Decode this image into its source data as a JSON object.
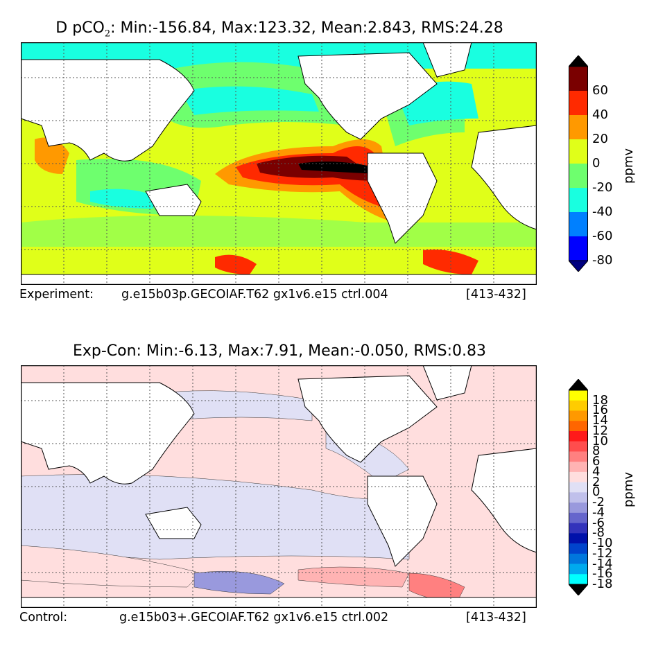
{
  "panel_top": {
    "title_prefix": "D pCO",
    "title_sub": "2",
    "title_rest": ": Min:-156.84, Max:123.32, Mean:2.843, RMS:24.28",
    "caption_label": "Experiment:",
    "caption_case": "g.e15b03p.GECOIAF.T62 gx1v6.e15 ctrl.004",
    "caption_years": "[413-432]",
    "colorbar": {
      "unit": "ppmv",
      "tick_labels": [
        "60",
        "40",
        "20",
        "0",
        "-20",
        "-40",
        "-60",
        "-80"
      ],
      "colors": [
        "#000000",
        "#7a0000",
        "#ff2a00",
        "#ff9900",
        "#e0ff19",
        "#6eff6e",
        "#19ffe0",
        "#0080ff",
        "#0000ff",
        "#000080"
      ]
    }
  },
  "panel_bottom": {
    "title": "Exp-Con: Min:-6.13, Max:7.91, Mean:-0.050, RMS:0.83",
    "caption_label": "Control:",
    "caption_case": "g.e15b03+.GECOIAF.T62 gx1v6.e15 ctrl.002",
    "caption_years": "[413-432]",
    "colorbar": {
      "unit": "ppmv",
      "tick_labels": [
        "18",
        "16",
        "14",
        "12",
        "10",
        "8",
        "6",
        "4",
        "2",
        "0",
        "-2",
        "-4",
        "-6",
        "-8",
        "-10",
        "-12",
        "-14",
        "-16",
        "-18"
      ],
      "colors": [
        "#000000",
        "#ffff00",
        "#ffcc00",
        "#ff9900",
        "#ff6600",
        "#ff1a1a",
        "#ff4d4d",
        "#ff8080",
        "#ffb3b3",
        "#ffdede",
        "#e0e0f5",
        "#c0c0eb",
        "#9999dd",
        "#6666cc",
        "#3333bb",
        "#0011aa",
        "#0044cc",
        "#0077dd",
        "#00aaee",
        "#00ffff",
        "#000000"
      ]
    }
  },
  "colors": {
    "land": "#ffffff",
    "coast": "#000000",
    "grid": "#555555"
  }
}
